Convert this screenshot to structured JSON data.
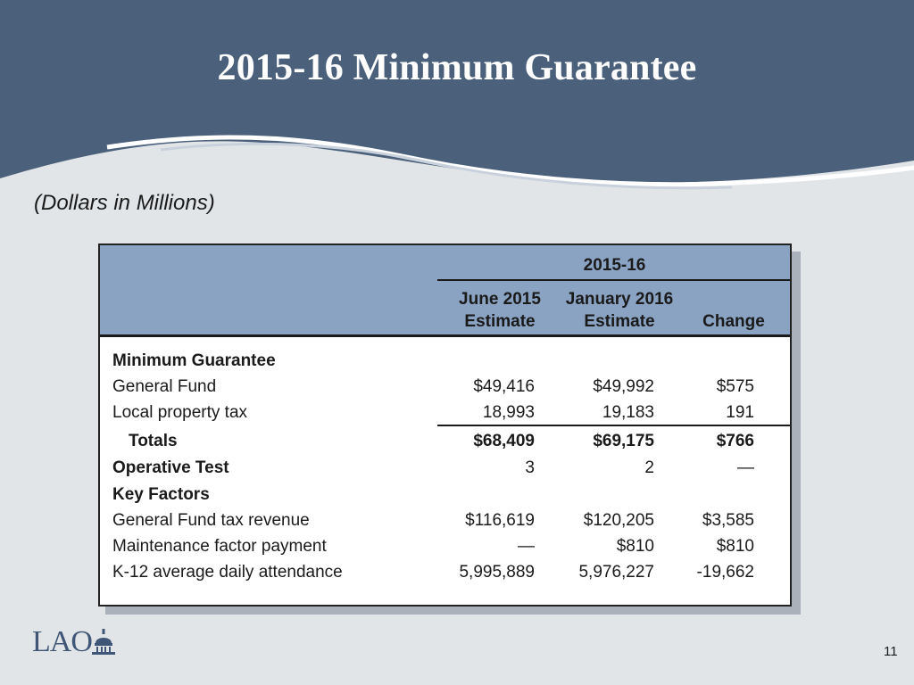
{
  "slide": {
    "title": "2015-16 Minimum Guarantee",
    "subtitle": "(Dollars in Millions)",
    "page_number": "11",
    "logo_text": "LAO"
  },
  "table": {
    "group_header": "2015-16",
    "columns": [
      {
        "line1": "June 2015",
        "line2": "Estimate"
      },
      {
        "line1": "January 2016",
        "line2": "Estimate"
      },
      {
        "line1": "",
        "line2": "Change"
      }
    ],
    "rows": [
      {
        "label": "Minimum Guarantee",
        "v1": "",
        "v2": "",
        "v3": ""
      },
      {
        "label": "General Fund",
        "v1": "$49,416",
        "v2": "$49,992",
        "v3": "$575"
      },
      {
        "label": "Local property tax",
        "v1": "18,993",
        "v2": "19,183",
        "v3": "191"
      },
      {
        "label": "Totals",
        "v1": "$68,409",
        "v2": "$69,175",
        "v3": "$766"
      },
      {
        "label": "Operative Test",
        "v1": "3",
        "v2": "2",
        "v3": "—"
      },
      {
        "label": "Key Factors",
        "v1": "",
        "v2": "",
        "v3": ""
      },
      {
        "label": "General Fund tax revenue",
        "v1": "$116,619",
        "v2": "$120,205",
        "v3": "$3,585"
      },
      {
        "label": "Maintenance factor payment",
        "v1": "—",
        "v2": "$810",
        "v3": "$810"
      },
      {
        "label": "K-12 average daily attendance",
        "v1": "5,995,889",
        "v2": "5,976,227",
        "v3": "-19,662"
      }
    ]
  },
  "colors": {
    "header_band": "#4b607a",
    "table_header": "#8aa3c3",
    "background": "#e2e5e8",
    "logo": "#3f5676"
  }
}
